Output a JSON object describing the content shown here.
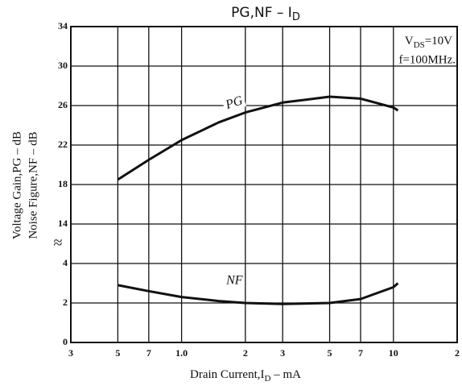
{
  "chart_data": {
    "type": "line",
    "title": {
      "text": "PG,NF  –  I",
      "sub": "D"
    },
    "xlabel": {
      "text": "Drain Current,I",
      "sub": "D",
      "tail": " – mA"
    },
    "ylabel": [
      "Voltage Gain,PG – dB",
      "Noise Figure,NF – dB"
    ],
    "annotations": [
      {
        "text": "V",
        "sub": "DS",
        "tail": "=10V"
      },
      {
        "text": "f=100MHz."
      }
    ],
    "xscale": "log",
    "xlim": [
      0.3,
      20
    ],
    "xticks": [
      {
        "value": 0.3,
        "label": "3"
      },
      {
        "value": 0.5,
        "label": "5"
      },
      {
        "value": 0.7,
        "label": "7"
      },
      {
        "value": 1,
        "label": "1.0"
      },
      2,
      3,
      5,
      7,
      10,
      {
        "value": 20,
        "label": "2"
      }
    ],
    "ylim": [
      0,
      34
    ],
    "y_break": [
      4,
      14
    ],
    "yticks": [
      0,
      2,
      4,
      14,
      18,
      22,
      26,
      30,
      34
    ],
    "grid": true,
    "series": [
      {
        "name": "PG",
        "color": "#111111",
        "x": [
          0.5,
          0.7,
          1,
          1.5,
          2,
          3,
          5,
          7,
          10,
          10.5
        ],
        "values": [
          18.5,
          20.5,
          22.5,
          24.3,
          25.3,
          26.3,
          26.9,
          26.7,
          25.8,
          25.5
        ]
      },
      {
        "name": "NF",
        "color": "#111111",
        "x": [
          0.5,
          0.7,
          1,
          1.5,
          2,
          3,
          5,
          7,
          10,
          10.5
        ],
        "values": [
          2.9,
          2.6,
          2.3,
          2.1,
          2.0,
          1.95,
          2.0,
          2.2,
          2.8,
          3.0
        ]
      }
    ]
  }
}
